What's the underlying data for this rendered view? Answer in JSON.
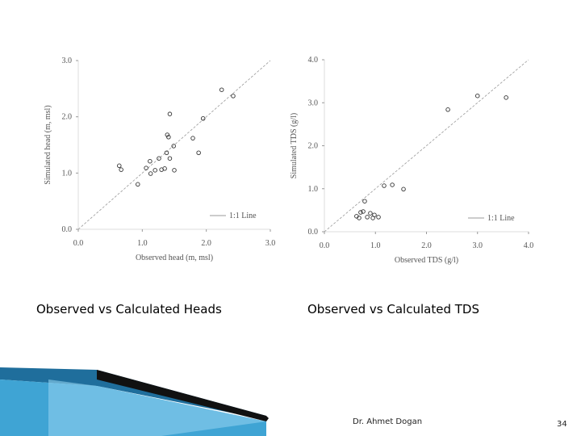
{
  "chart_data": [
    {
      "type": "scatter",
      "xlabel": "Observed head (m, msl)",
      "ylabel": "Simulated head (m, msl)",
      "x": [
        0.64,
        0.67,
        0.93,
        1.06,
        1.13,
        1.12,
        1.2,
        1.26,
        1.3,
        1.35,
        1.38,
        1.43,
        1.43,
        1.41,
        1.39,
        1.49,
        1.5,
        1.79,
        1.88,
        1.95,
        2.24,
        2.42
      ],
      "values": [
        1.13,
        1.06,
        0.8,
        1.09,
        0.99,
        1.21,
        1.05,
        1.26,
        1.06,
        1.08,
        1.36,
        1.26,
        2.05,
        1.64,
        1.68,
        1.48,
        1.05,
        1.62,
        1.36,
        1.97,
        2.48,
        2.37
      ],
      "color": "#333333",
      "line_label": "1:1 Line",
      "legend_position": "lower right",
      "xlim": [
        0,
        3
      ],
      "ylim": [
        0,
        3
      ],
      "xticks": [
        {
          "value": 0,
          "label": "0.0"
        },
        {
          "value": 1,
          "label": "1.0"
        },
        {
          "value": 2,
          "label": "2.0"
        },
        {
          "value": 3,
          "label": "3.0"
        }
      ],
      "yticks": [
        {
          "value": 0,
          "label": "0.0"
        },
        {
          "value": 1,
          "label": "1.0"
        },
        {
          "value": 2,
          "label": "2.0"
        },
        {
          "value": 3,
          "label": "3.0"
        }
      ]
    },
    {
      "type": "scatter",
      "xlabel": "Observed TDS (g/l)",
      "ylabel": "Simulated TDS (g/l)",
      "x": [
        0.63,
        0.68,
        0.71,
        0.76,
        0.79,
        0.84,
        0.9,
        0.95,
        0.98,
        1.06,
        1.17,
        1.33,
        1.55,
        2.42,
        3.0,
        3.56
      ],
      "values": [
        0.36,
        0.32,
        0.45,
        0.47,
        0.71,
        0.34,
        0.43,
        0.32,
        0.39,
        0.34,
        1.07,
        1.09,
        0.99,
        2.84,
        3.16,
        3.12
      ],
      "color": "#333333",
      "line_label": "1:1 Line",
      "legend_position": "lower right",
      "xlim": [
        0,
        4
      ],
      "ylim": [
        0,
        4
      ],
      "xticks": [
        {
          "value": 0,
          "label": "0.0"
        },
        {
          "value": 1,
          "label": "1.0"
        },
        {
          "value": 2,
          "label": "2.0"
        },
        {
          "value": 3,
          "label": "3.0"
        },
        {
          "value": 4,
          "label": "4.0"
        }
      ],
      "yticks": [
        {
          "value": 0,
          "label": "0.0"
        },
        {
          "value": 1,
          "label": "1.0"
        },
        {
          "value": 2,
          "label": "2.0"
        },
        {
          "value": 3,
          "label": "3.0"
        },
        {
          "value": 4,
          "label": "4.0"
        }
      ]
    }
  ],
  "captions": [
    "Observed vs Calculated Heads",
    "Observed vs Calculated TDS"
  ],
  "footer": {
    "author": "Dr. Ahmet Dogan",
    "page": "34"
  }
}
